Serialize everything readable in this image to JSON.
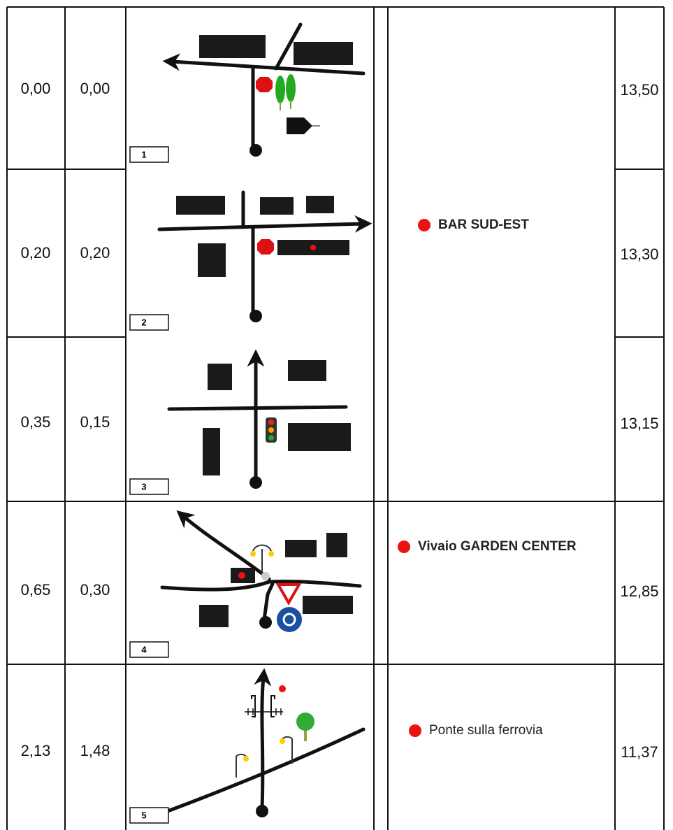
{
  "rows": [
    {
      "total": "0,00",
      "partial": "0,00",
      "step": "1",
      "remaining": "13,50"
    },
    {
      "total": "0,20",
      "partial": "0,20",
      "step": "2",
      "remaining": "13,30"
    },
    {
      "total": "0,35",
      "partial": "0,15",
      "step": "3",
      "remaining": "13,15"
    },
    {
      "total": "0,65",
      "partial": "0,30",
      "step": "4",
      "remaining": "12,85"
    },
    {
      "total": "2,13",
      "partial": "1,48",
      "step": "5",
      "remaining": "11,37"
    }
  ],
  "notes": [
    "BAR SUD-EST",
    "Vivaio GARDEN CENTER",
    "Ponte sulla ferrovia"
  ]
}
